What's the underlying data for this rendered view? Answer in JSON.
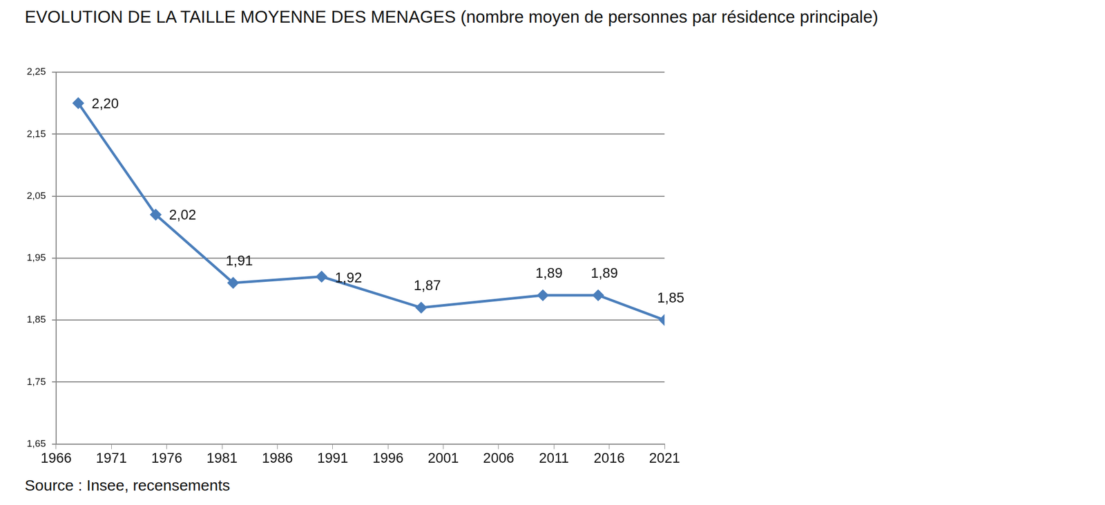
{
  "chart_data": {
    "type": "line",
    "title": "EVOLUTION DE LA TAILLE MOYENNE DES MENAGES (nombre moyen de personnes par résidence principale)",
    "source": "Source : Insee, recensements",
    "x": [
      1968,
      1975,
      1982,
      1990,
      1999,
      2010,
      2015,
      2021
    ],
    "values": [
      2.2,
      2.02,
      1.91,
      1.92,
      1.87,
      1.89,
      1.89,
      1.85
    ],
    "value_labels": [
      "2,20",
      "2,02",
      "1,91",
      "1,92",
      "1,87",
      "1,89",
      "1,89",
      "1,85"
    ],
    "color": "#4a7ebb",
    "marker": "diamond",
    "xlim": [
      1966,
      2021
    ],
    "xticks": [
      1966,
      1971,
      1976,
      1981,
      1986,
      1991,
      1996,
      2001,
      2006,
      2011,
      2016,
      2021
    ],
    "ylim": [
      1.65,
      2.25
    ],
    "yticks": [
      {
        "value": 1.65,
        "label": "1,65"
      },
      {
        "value": 1.75,
        "label": "1,75"
      },
      {
        "value": 1.85,
        "label": "1,85"
      },
      {
        "value": 1.95,
        "label": "1,95"
      },
      {
        "value": 2.05,
        "label": "2,05"
      },
      {
        "value": 2.15,
        "label": "2,15"
      },
      {
        "value": 2.25,
        "label": "2,25"
      }
    ],
    "grid": true,
    "data_labels": true
  }
}
